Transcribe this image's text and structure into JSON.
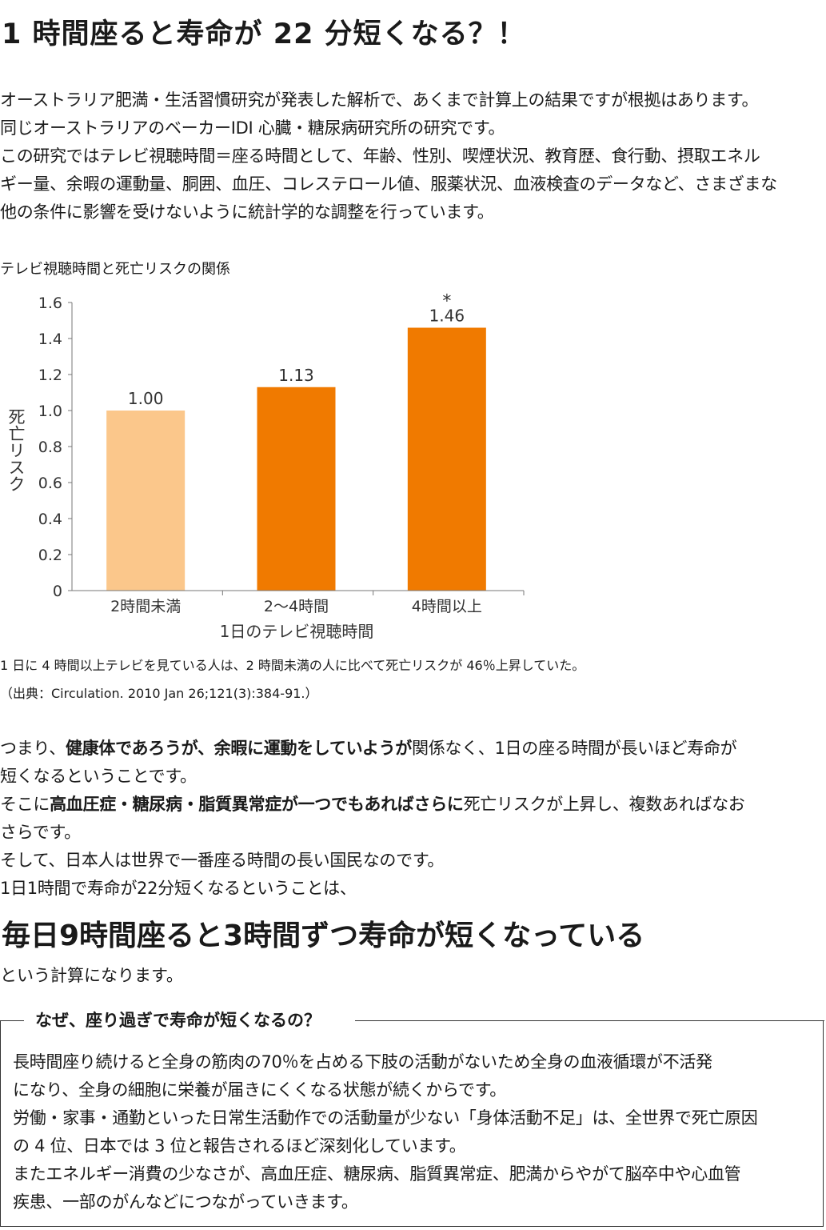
{
  "title": "1 時間座ると寿命が 22 分短くなる？！",
  "intro": [
    "オーストラリア肥満・生活習慣研究が発表した解析で、あくまで計算上の結果ですが根拠はあります。",
    "同じオーストラリアのベーカーIDI 心臓・糖尿病研究所の研究です。",
    "この研究ではテレビ視聴時間＝座る時間として、年齢、性別、喫煙状況、教育歴、食行動、摂取エネル",
    "ギー量、余暇の運動量、胴囲、血圧、コレステロール値、服薬状況、血液検査のデータなど、さまざまな",
    "他の条件に影響を受けないように統計学的な調整を行っています。"
  ],
  "chart_caption": "テレビ視聴時間と死亡リスクの関係",
  "chart_data": {
    "type": "bar",
    "categories": [
      "2時間未満",
      "2～4時間",
      "4時間以上"
    ],
    "values": [
      1.0,
      1.13,
      1.46
    ],
    "value_labels": [
      "1.00",
      "1.13",
      "1.46"
    ],
    "annotations": [
      "",
      "",
      "*"
    ],
    "bar_colors": [
      "#fbc78b",
      "#f07a00",
      "#f07a00"
    ],
    "xlabel": "1日のテレビ視聴時間",
    "ylabel": "死亡リスク",
    "ylim": [
      0,
      1.6
    ],
    "yticks": [
      "0",
      "0.2",
      "0.4",
      "0.6",
      "0.8",
      "1.0",
      "1.2",
      "1.4",
      "1.6"
    ],
    "ytick_values": [
      0,
      0.2,
      0.4,
      0.6,
      0.8,
      1.0,
      1.2,
      1.4,
      1.6
    ],
    "grid": false
  },
  "note1": "1 日に 4 時間以上テレビを見ている人は、2 時間未満の人に比べて死亡リスクが 46％上昇していた。",
  "note2": "（出典：Circulation. 2010 Jan 26;121(3):384-91.）",
  "body": {
    "l1_a": "つまり、",
    "l1_b": "健康体であろうが、余暇に運動をしていようが",
    "l1_c": "関係なく、1日の座る時間が長いほど寿命が",
    "l2": "短くなるということです。",
    "l3_a": "そこに",
    "l3_b": "高血圧症・糖尿病・脂質異常症が一つでもあればさらに",
    "l3_c": "死亡リスクが上昇し、複数あればなお",
    "l4": "さらです。",
    "l5": "そして、日本人は世界で一番座る時間の長い国民なのです。",
    "l6": "1日1時間で寿命が22分短くなるということは、"
  },
  "highlight": "毎日9時間座ると3時間ずつ寿命が短くなっている",
  "after": "という計算になります。",
  "box": {
    "title": "なぜ、座り過ぎで寿命が短くなるの？",
    "lines": [
      "長時間座り続けると全身の筋肉の70％を占める下肢の活動がないため全身の血液循環が不活発",
      "になり、全身の細胞に栄養が届きにくくなる状態が続くからです。",
      "労働・家事・通勤といった日常生活動作での活動量が少ない「身体活動不足」は、全世界で死亡原因",
      "の 4 位、日本では 3 位と報告されるほど深刻化しています。",
      "またエネルギー消費の少なさが、高血圧症、糖尿病、脂質異常症、肥満からやがて脳卒中や心血管",
      "疾患、一部のがんなどにつながっていきます。"
    ]
  }
}
